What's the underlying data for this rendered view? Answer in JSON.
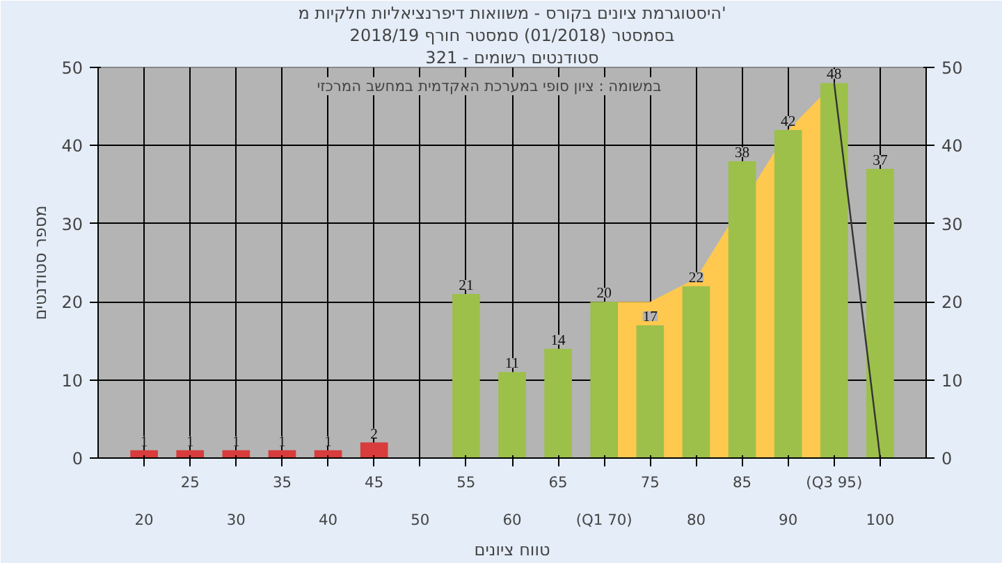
{
  "chart_data": {
    "type": "bar",
    "title": "היסטוגרמת ציונים בקורס - משוואות דיפרנציאליות חלקיות מ'",
    "subtitle": "בסמסטר (01/2018) סמסטר חורף 2018/19",
    "annotations": [
      "סטודנטים רשומים - 321",
      "במשומה : ציון סופי במערכת האקדמית במחשב המרכזי"
    ],
    "xlabel": "טווח ציונים",
    "ylabel": "מספר סטודנטים",
    "categories": [
      "20",
      "25",
      "30",
      "35",
      "40",
      "45",
      "50",
      "55",
      "60",
      "65",
      "(Q1 70)",
      "75",
      "80",
      "85",
      "90",
      "(Q3 95)",
      "100"
    ],
    "series": [
      {
        "type": "area",
        "color": "#ffc94f",
        "values": [
          null,
          null,
          null,
          null,
          null,
          null,
          null,
          null,
          null,
          null,
          20,
          20,
          23,
          null,
          42,
          48,
          null
        ]
      },
      {
        "colors": [
          "#d83c3c",
          "#d83c3c",
          "#d83c3c",
          "#d83c3c",
          "#d83c3c",
          "#d83c3c",
          null,
          "#9cc04a",
          "#9cc04a",
          "#9cc04a",
          "#9cc04a",
          "#9cc04a",
          "#9cc04a",
          "#9cc04a",
          "#9cc04a",
          "#9cc04a",
          "#9cc04a"
        ],
        "values": [
          1,
          1,
          1,
          1,
          1,
          2,
          null,
          21,
          11,
          14,
          20,
          17,
          22,
          38,
          42,
          48,
          37
        ],
        "value_labels": [
          "1",
          "1",
          "1",
          "1",
          "1",
          "2",
          null,
          "21",
          "11",
          "14",
          "20",
          "17",
          "22",
          "38",
          "42",
          "48",
          "37"
        ]
      },
      {
        "type": "line",
        "color": "#333333",
        "values": [
          null,
          null,
          null,
          null,
          null,
          null,
          null,
          null,
          null,
          null,
          null,
          null,
          null,
          null,
          null,
          48,
          0
        ]
      }
    ],
    "ylim": [
      0,
      50
    ],
    "yticks": [
      0,
      10,
      20,
      30,
      40,
      50
    ],
    "y2lim": [
      0,
      50
    ],
    "y2ticks": [
      0,
      10,
      20,
      30,
      40,
      50
    ],
    "grid": true
  }
}
